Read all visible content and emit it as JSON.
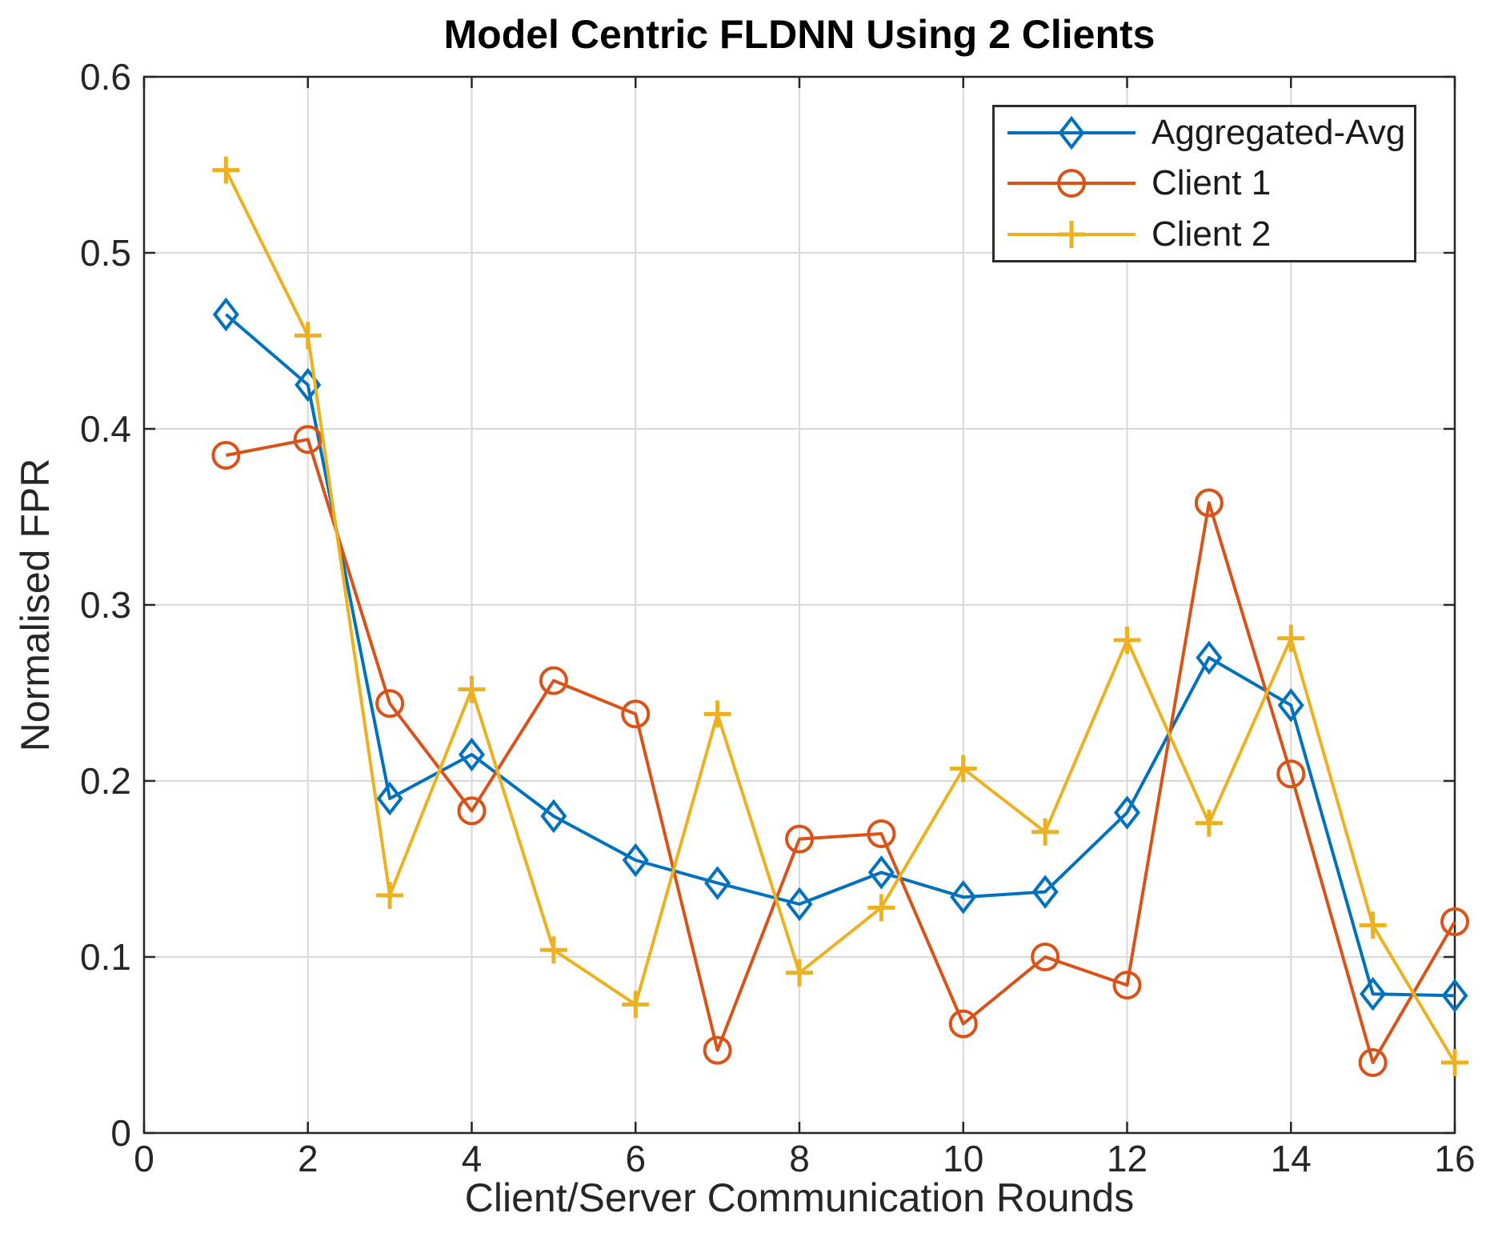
{
  "chart_data": {
    "type": "line",
    "title": "Model Centric FLDNN Using 2 Clients",
    "xlabel": "Client/Server Communication Rounds",
    "ylabel": "Normalised FPR",
    "xlim": [
      0,
      16
    ],
    "ylim": [
      0,
      0.6
    ],
    "grid": true,
    "legend_position": "top-right",
    "x_ticks": [
      {
        "value": 0,
        "label": "0"
      },
      {
        "value": 2,
        "label": "2"
      },
      {
        "value": 4,
        "label": "4"
      },
      {
        "value": 6,
        "label": "6"
      },
      {
        "value": 8,
        "label": "8"
      },
      {
        "value": 10,
        "label": "10"
      },
      {
        "value": 12,
        "label": "12"
      },
      {
        "value": 14,
        "label": "14"
      },
      {
        "value": 16,
        "label": "16"
      }
    ],
    "y_ticks": [
      {
        "value": 0.0,
        "label": "0"
      },
      {
        "value": 0.1,
        "label": "0.1"
      },
      {
        "value": 0.2,
        "label": "0.2"
      },
      {
        "value": 0.3,
        "label": "0.3"
      },
      {
        "value": 0.4,
        "label": "0.4"
      },
      {
        "value": 0.5,
        "label": "0.5"
      },
      {
        "value": 0.6,
        "label": "0.6"
      }
    ],
    "x": [
      1,
      2,
      3,
      4,
      5,
      6,
      7,
      8,
      9,
      10,
      11,
      12,
      13,
      14,
      15,
      16
    ],
    "series": [
      {
        "name": "Aggregated-Avg",
        "color": "#0072BD",
        "marker": "diamond",
        "values": [
          0.465,
          0.425,
          0.19,
          0.215,
          0.18,
          0.155,
          0.142,
          0.13,
          0.148,
          0.134,
          0.137,
          0.182,
          0.27,
          0.243,
          0.079,
          0.078
        ]
      },
      {
        "name": "Client 1",
        "color": "#D95319",
        "marker": "circle",
        "values": [
          0.385,
          0.394,
          0.244,
          0.183,
          0.257,
          0.238,
          0.047,
          0.167,
          0.17,
          0.062,
          0.1,
          0.084,
          0.358,
          0.204,
          0.04,
          0.12
        ]
      },
      {
        "name": "Client 2",
        "color": "#EDB120",
        "marker": "plus",
        "values": [
          0.547,
          0.453,
          0.135,
          0.252,
          0.104,
          0.073,
          0.238,
          0.091,
          0.128,
          0.207,
          0.171,
          0.28,
          0.176,
          0.281,
          0.118,
          0.04
        ]
      }
    ]
  },
  "style": {
    "axis_color": "#262626",
    "grid_color": "#d9d9d9",
    "tick_label_color": "#262626",
    "background": "#ffffff"
  }
}
